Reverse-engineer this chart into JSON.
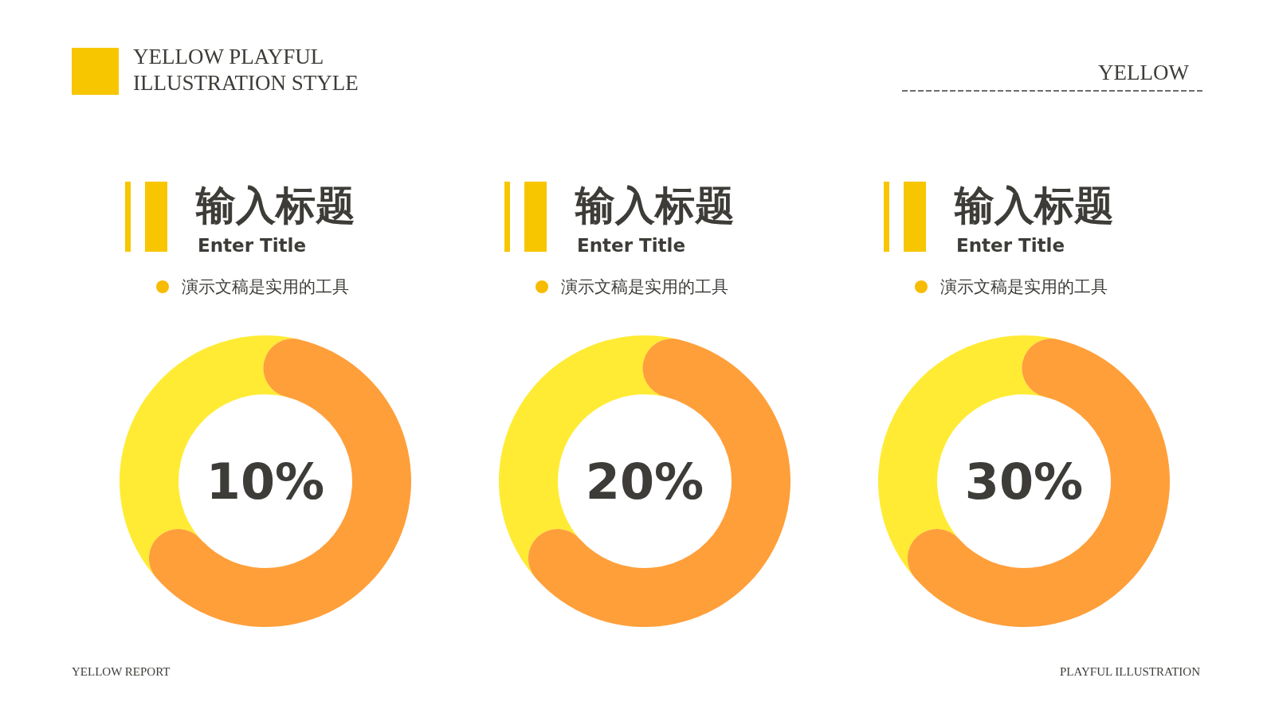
{
  "chart_data": [
    {
      "type": "other",
      "title": "YELLOW PLAYFUL ILLUSTRATION STYLE",
      "annotations": [
        "YELLOW",
        "YELLOW  REPORT",
        "PLAYFUL  ILLUSTRATION"
      ]
    },
    {
      "type": "donut",
      "title": "输入标题",
      "subtitle": "Enter Title",
      "annotations": [
        "演示文稿是实用的工具",
        "10%"
      ],
      "categories": [
        null,
        null
      ],
      "values": [
        66,
        34
      ],
      "colors": [
        "#ff9f3a",
        "#ffeb33"
      ]
    },
    {
      "type": "donut",
      "title": "输入标题",
      "subtitle": "Enter Title",
      "annotations": [
        "演示文稿是实用的工具",
        "20%"
      ],
      "categories": [
        null,
        null
      ],
      "values": [
        66,
        34
      ],
      "colors": [
        "#ff9f3a",
        "#ffeb33"
      ]
    },
    {
      "type": "donut",
      "title": "输入标题",
      "subtitle": "Enter Title",
      "annotations": [
        "演示文稿是实用的工具",
        "30%"
      ],
      "categories": [
        null,
        null
      ],
      "values": [
        66,
        34
      ],
      "colors": [
        "#ff9f3a",
        "#ffeb33"
      ]
    }
  ]
}
